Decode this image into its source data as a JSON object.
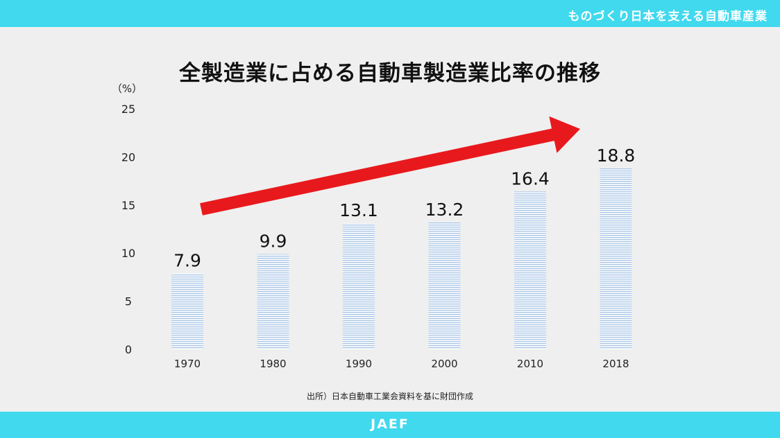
{
  "header": {
    "text": "ものづくり日本を支える自動車産業"
  },
  "footer": {
    "text": "JAEF"
  },
  "source_note": "出所）日本自動車工業会資料を基に財団作成",
  "colors": {
    "banner": "#41d9ee",
    "background": "#efefef",
    "bar_stripe": "#a9c6e6",
    "arrow": "#e8191d"
  },
  "chart_data": {
    "type": "bar",
    "title": "全製造業に占める自動車製造業比率の推移",
    "unit_label": "（%）",
    "categories": [
      "1970",
      "1980",
      "1990",
      "2000",
      "2010",
      "2018"
    ],
    "values": [
      7.9,
      9.9,
      13.1,
      13.2,
      16.4,
      18.8
    ],
    "value_labels": [
      "7.9",
      "9.9",
      "13.1",
      "13.2",
      "16.4",
      "18.8"
    ],
    "yticks": [
      "0",
      "5",
      "10",
      "15",
      "20",
      "25"
    ],
    "ylim": [
      0,
      25
    ],
    "grid": false,
    "annotation": "upward-trend-arrow"
  }
}
